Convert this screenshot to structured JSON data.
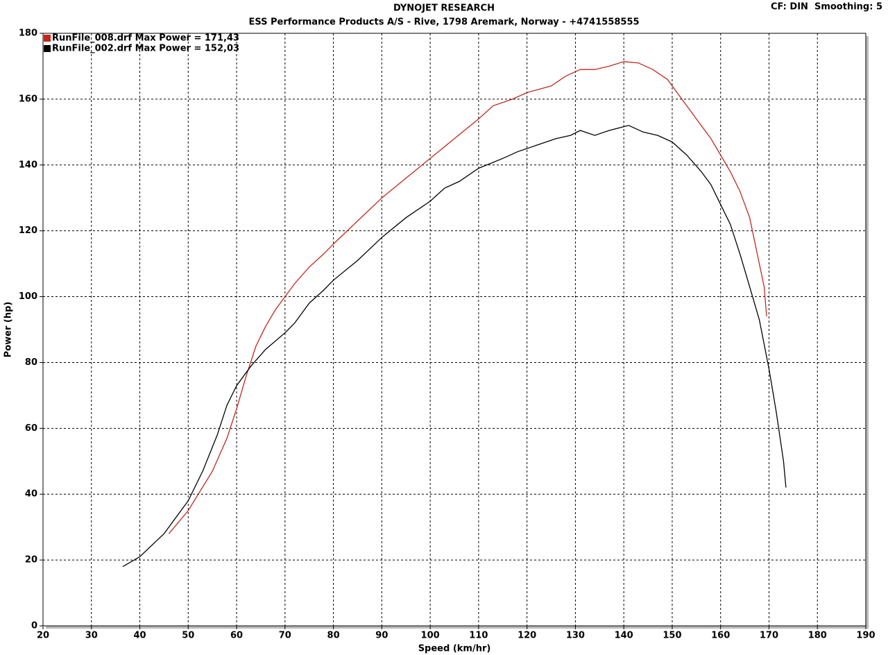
{
  "chart_data": {
    "type": "line",
    "title": "DYNOJET RESEARCH",
    "subtitle": "ESS Performance Products A/S - Rive, 1798 Aremark, Norway - +4741558555",
    "annotation": "CF: DIN  Smoothing: 5",
    "x_label": "Speed (km/hr)",
    "y_label": "Power (hp)",
    "xlim": [
      20,
      190
    ],
    "xticks": [
      20,
      30,
      40,
      50,
      60,
      70,
      80,
      90,
      100,
      110,
      120,
      130,
      140,
      150,
      160,
      170,
      180,
      190
    ],
    "ylim": [
      0,
      180
    ],
    "yticks": [
      0,
      20,
      40,
      60,
      80,
      100,
      120,
      140,
      160,
      180
    ],
    "grid": true,
    "series": [
      {
        "name": "RunFile_008.drf Max Power = 171,43",
        "color": "#c0281e",
        "x": [
          46,
          50,
          55,
          58,
          60,
          62,
          64,
          66,
          68,
          70,
          72,
          75,
          78,
          80,
          85,
          90,
          95,
          100,
          105,
          110,
          113,
          117,
          120,
          125,
          128,
          131,
          134,
          137,
          140,
          143,
          146,
          149,
          152,
          155,
          158,
          160,
          162,
          164,
          166,
          168,
          169,
          169.5
        ],
        "values": [
          28,
          35,
          47,
          57,
          66,
          76,
          85,
          91,
          96,
          100,
          104,
          109,
          113,
          116,
          123,
          130,
          136,
          142,
          148,
          154,
          158,
          160,
          162,
          164,
          167,
          169,
          169,
          170,
          171.4,
          171,
          169,
          166,
          160,
          154,
          148,
          143,
          138,
          132,
          124,
          110,
          103,
          94
        ]
      },
      {
        "name": "RunFile_002.drf Max Power = 152,03",
        "color": "#000000",
        "x": [
          36.5,
          40,
          45,
          50,
          53,
          56,
          58,
          60,
          63,
          66,
          70,
          72,
          75,
          78,
          80,
          85,
          90,
          95,
          100,
          103,
          106,
          110,
          115,
          118,
          122,
          126,
          129,
          131,
          134,
          137,
          141,
          144,
          147,
          150,
          153,
          156,
          158,
          160,
          162,
          164,
          166,
          168,
          170,
          171.5,
          173,
          173.5
        ],
        "values": [
          18,
          21,
          28,
          38,
          47,
          58,
          67,
          73,
          79,
          84,
          89,
          92,
          98,
          102,
          105,
          111,
          118,
          124,
          129,
          133,
          135,
          139,
          142,
          144,
          146,
          148,
          149,
          150.5,
          149,
          150.5,
          152,
          150,
          149,
          147,
          143,
          138,
          134,
          128,
          122,
          113,
          103,
          93,
          78,
          65,
          50,
          42
        ]
      }
    ]
  }
}
